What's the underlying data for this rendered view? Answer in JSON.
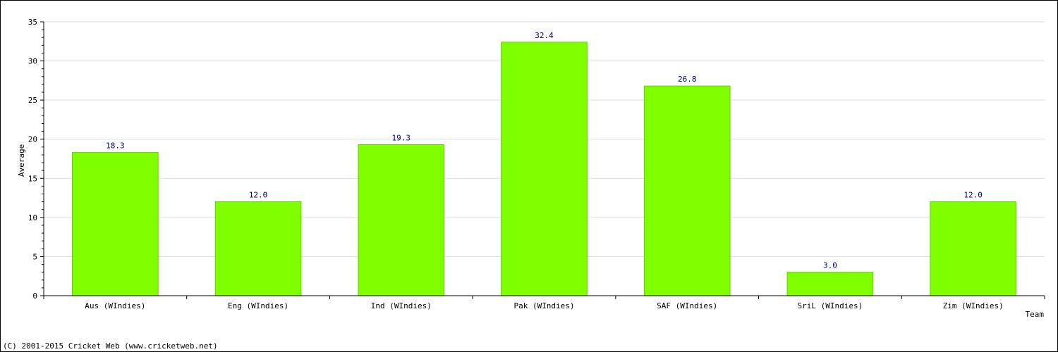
{
  "chart_data": {
    "type": "bar",
    "title": "",
    "xlabel": "Team",
    "ylabel": "Average",
    "categories": [
      "Aus (WIndies)",
      "Eng (WIndies)",
      "Ind (WIndies)",
      "Pak (WIndies)",
      "SAF (WIndies)",
      "SriL (WIndies)",
      "Zim (WIndies)"
    ],
    "values": [
      18.3,
      12.0,
      19.3,
      32.4,
      26.8,
      3.0,
      12.0
    ],
    "value_labels": [
      "18.3",
      "12.0",
      "19.3",
      "32.4",
      "26.8",
      "3.0",
      "12.0"
    ],
    "ylim": [
      0,
      35
    ],
    "yticks": [
      0,
      5,
      10,
      15,
      20,
      25,
      30,
      35
    ],
    "grid": true,
    "legend": "none",
    "colors": {
      "bar_fill": "#80ff00",
      "bar_stroke": "#66cc00",
      "value_label": "#000080",
      "grid": "#dddddd",
      "axis": "#000000"
    }
  },
  "footer": {
    "copyright": "(C) 2001-2015 Cricket Web (www.cricketweb.net)"
  }
}
